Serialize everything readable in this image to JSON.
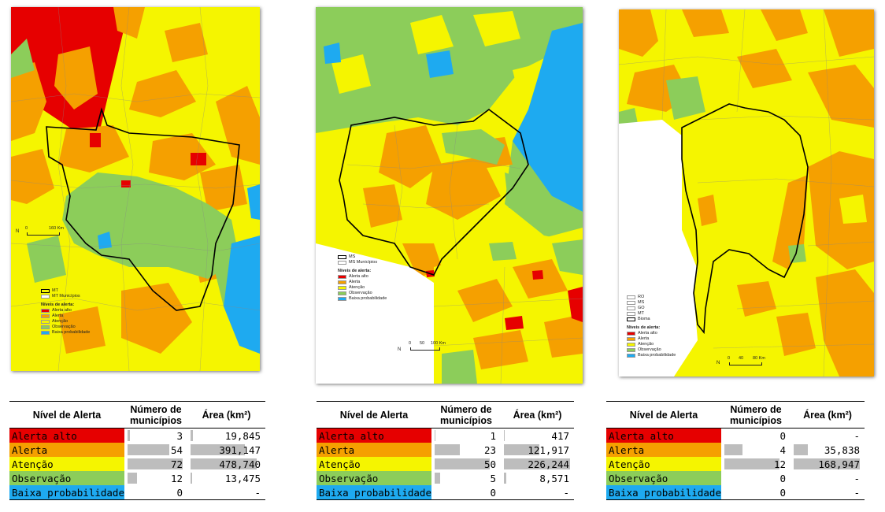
{
  "colors": {
    "alerta_alto": "#e60000",
    "alerta": "#f5a000",
    "atencao": "#f5f500",
    "observacao": "#8ccd5a",
    "baixa_probabilidade": "#1eaaf0",
    "bar_gray": "#bdbdbd"
  },
  "maps": [
    {
      "id": "mt",
      "legend": {
        "boundary": "MT",
        "municipios": "MT Municípios",
        "title": "Níveis de alerta:",
        "items": [
          "Alerta alto",
          "Alerta",
          "Atenção",
          "Observação",
          "Baixa probabilidade"
        ]
      },
      "scale": {
        "zero": "0",
        "mid": "80",
        "end": "160 Km"
      },
      "north": "N"
    },
    {
      "id": "ms",
      "legend": {
        "boundary": "MS",
        "municipios": "MS Municípios",
        "title": "Níveis de alerta:",
        "items": [
          "Alerta alto",
          "Alerta",
          "Atenção",
          "Observação",
          "Baixa probabilidade"
        ]
      },
      "scale": {
        "zero": "0",
        "mid": "50",
        "end": "100 Km"
      },
      "north": "N"
    },
    {
      "id": "pantanal",
      "legend": {
        "states": [
          "RO",
          "MS",
          "GO",
          "MT"
        ],
        "boundary": "Bioma",
        "title": "Níveis de alerta:",
        "items": [
          "Alerta alto",
          "Alerta",
          "Atenção",
          "Observação",
          "Baixa probabilidade"
        ]
      },
      "scale": {
        "zero": "0",
        "mid": "40",
        "end": "80 Km"
      },
      "north": "N"
    }
  ],
  "tables": [
    {
      "headers": {
        "level": "Nível de Alerta",
        "count": "Número de municípios",
        "area": "Área (km²)"
      },
      "rows": [
        {
          "label": "Alerta alto",
          "count": "3",
          "count_value": 3,
          "area": "19,845",
          "area_value": 19845
        },
        {
          "label": "Alerta",
          "count": "54",
          "count_value": 54,
          "area": "391,147",
          "area_value": 391147
        },
        {
          "label": "Atenção",
          "count": "72",
          "count_value": 72,
          "area": "478,740",
          "area_value": 478740
        },
        {
          "label": "Observação",
          "count": "12",
          "count_value": 12,
          "area": "13,475",
          "area_value": 13475
        },
        {
          "label": "Baixa probabilidade",
          "count": "0",
          "count_value": 0,
          "area": "-",
          "area_value": 0
        }
      ]
    },
    {
      "headers": {
        "level": "Nível de Alerta",
        "count": "Número de municípios",
        "area": "Área (km²)"
      },
      "rows": [
        {
          "label": "Alerta alto",
          "count": "1",
          "count_value": 1,
          "area": "417",
          "area_value": 417
        },
        {
          "label": "Alerta",
          "count": "23",
          "count_value": 23,
          "area": "121,917",
          "area_value": 121917
        },
        {
          "label": "Atenção",
          "count": "50",
          "count_value": 50,
          "area": "226,244",
          "area_value": 226244
        },
        {
          "label": "Observação",
          "count": "5",
          "count_value": 5,
          "area": "8,571",
          "area_value": 8571
        },
        {
          "label": "Baixa probabilidade",
          "count": "0",
          "count_value": 0,
          "area": "-",
          "area_value": 0
        }
      ]
    },
    {
      "headers": {
        "level": "Nível de Alerta",
        "count": "Número de municípios",
        "area": "Área (km²)"
      },
      "rows": [
        {
          "label": "Alerta alto",
          "count": "0",
          "count_value": 0,
          "area": "-",
          "area_value": 0
        },
        {
          "label": "Alerta",
          "count": "4",
          "count_value": 4,
          "area": "35,838",
          "area_value": 35838
        },
        {
          "label": "Atenção",
          "count": "12",
          "count_value": 12,
          "area": "168,947",
          "area_value": 168947
        },
        {
          "label": "Observação",
          "count": "0",
          "count_value": 0,
          "area": "-",
          "area_value": 0
        },
        {
          "label": "Baixa probabilidade",
          "count": "0",
          "count_value": 0,
          "area": "-",
          "area_value": 0
        }
      ]
    }
  ]
}
